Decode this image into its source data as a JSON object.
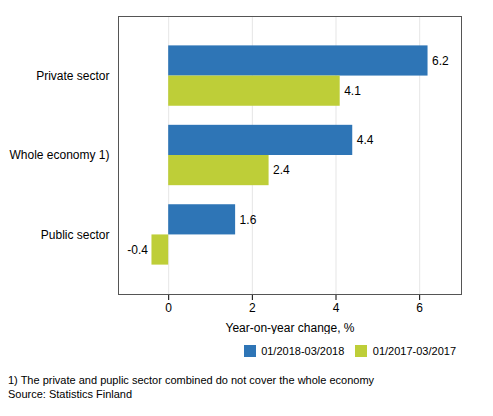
{
  "chart_data": {
    "type": "bar",
    "orientation": "horizontal",
    "categories": [
      "Public sector",
      "Whole economy 1)",
      "Private sector"
    ],
    "series": [
      {
        "name": "01/2018-03/2018",
        "color": "#2E75B6",
        "values": [
          1.6,
          4.4,
          6.2
        ]
      },
      {
        "name": "01/2017-03/2017",
        "color": "#BECE38",
        "values": [
          -0.4,
          2.4,
          4.1
        ]
      }
    ],
    "xlabel": "Year-on-year change, %",
    "xlim": [
      -1.2,
      7.0
    ],
    "xticks": [
      0,
      2,
      4,
      6
    ],
    "grid": true,
    "data_labels": true,
    "legend": "lower right",
    "annotations": [
      "1) The private and puplic sector combined do not cover the whole economy",
      "Source: Statistics Finland"
    ]
  }
}
